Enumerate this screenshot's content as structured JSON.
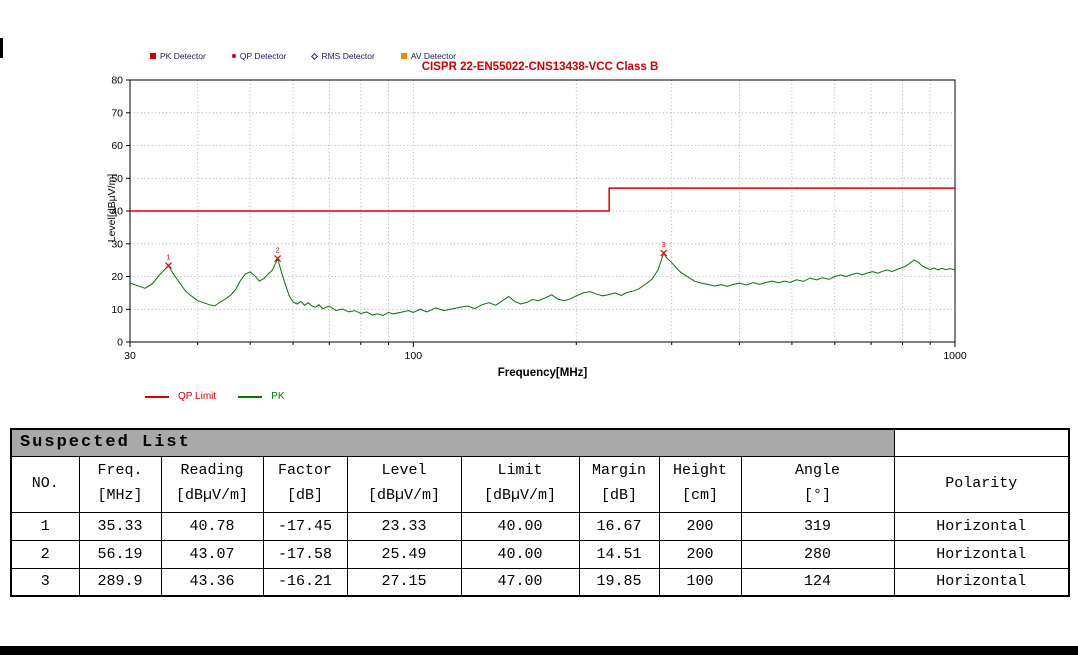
{
  "chart_data": {
    "type": "line",
    "title": "CISPR 22-EN55022-CNS13438-VCC Class B",
    "title_color": "#cc0000",
    "xlabel": "Frequency[MHz]",
    "ylabel": "Level[dBµV/m]",
    "xscale": "log",
    "xlim": [
      30,
      1000
    ],
    "ylim": [
      0,
      80
    ],
    "yticks": [
      0,
      10,
      20,
      30,
      40,
      50,
      60,
      70,
      80
    ],
    "xticks": [
      30,
      100,
      1000
    ],
    "grid": true,
    "legend_position": "below-left",
    "detector_legend": [
      {
        "label": "PK Detector",
        "marker": "square",
        "color": "#cc0000"
      },
      {
        "label": "QP Detector",
        "marker": "dot",
        "color": "#cc0000"
      },
      {
        "label": "RMS Detector",
        "marker": "diamond",
        "color": "#2222aa"
      },
      {
        "label": "AV Detector",
        "marker": "square",
        "color": "#ee8800"
      }
    ],
    "markers": [
      {
        "no": "1",
        "freq": 35.33,
        "level": 23.33
      },
      {
        "no": "2",
        "freq": 56.19,
        "level": 25.49
      },
      {
        "no": "3",
        "freq": 289.9,
        "level": 27.15
      }
    ],
    "series": [
      {
        "name": "QP Limit",
        "color": "#dd0000",
        "points": [
          [
            30,
            40
          ],
          [
            230,
            40
          ],
          [
            230,
            47
          ],
          [
            1000,
            47
          ]
        ]
      },
      {
        "name": "PK",
        "color": "#007700",
        "points": [
          [
            30,
            18
          ],
          [
            31,
            17.2
          ],
          [
            32,
            16.4
          ],
          [
            33,
            17.8
          ],
          [
            34,
            20.5
          ],
          [
            35.33,
            23.33
          ],
          [
            36,
            21
          ],
          [
            37,
            18.2
          ],
          [
            38,
            15.5
          ],
          [
            39,
            14
          ],
          [
            40,
            12.6
          ],
          [
            41,
            12
          ],
          [
            42,
            11.4
          ],
          [
            43,
            11
          ],
          [
            44,
            12.2
          ],
          [
            45,
            13.1
          ],
          [
            46,
            14.3
          ],
          [
            47,
            16
          ],
          [
            48,
            18.8
          ],
          [
            49,
            20.8
          ],
          [
            50,
            21.4
          ],
          [
            51,
            20.2
          ],
          [
            52,
            18.6
          ],
          [
            53,
            19.4
          ],
          [
            54,
            20.8
          ],
          [
            55,
            22
          ],
          [
            56.19,
            25.49
          ],
          [
            57,
            21.8
          ],
          [
            58,
            17.8
          ],
          [
            59,
            14.2
          ],
          [
            60,
            12.2
          ],
          [
            61,
            11.6
          ],
          [
            62,
            12.4
          ],
          [
            63,
            11.2
          ],
          [
            64,
            12
          ],
          [
            65,
            11
          ],
          [
            66,
            10.6
          ],
          [
            67,
            11.4
          ],
          [
            68,
            10.2
          ],
          [
            70,
            11
          ],
          [
            72,
            9.6
          ],
          [
            74,
            10.1
          ],
          [
            76,
            9.2
          ],
          [
            78,
            9.6
          ],
          [
            80,
            8.7
          ],
          [
            82,
            9.2
          ],
          [
            84,
            8.2
          ],
          [
            86,
            8.6
          ],
          [
            88,
            8.1
          ],
          [
            90,
            9
          ],
          [
            92,
            8.6
          ],
          [
            95,
            9.1
          ],
          [
            98,
            9.6
          ],
          [
            100,
            9
          ],
          [
            103,
            10
          ],
          [
            106,
            9.2
          ],
          [
            110,
            10.4
          ],
          [
            114,
            9.6
          ],
          [
            118,
            10.1
          ],
          [
            122,
            10.6
          ],
          [
            126,
            11
          ],
          [
            130,
            10.2
          ],
          [
            134,
            11.4
          ],
          [
            138,
            12
          ],
          [
            142,
            11.2
          ],
          [
            146,
            12.6
          ],
          [
            150,
            13.9
          ],
          [
            154,
            12.4
          ],
          [
            158,
            11.6
          ],
          [
            162,
            12.1
          ],
          [
            166,
            13
          ],
          [
            170,
            12.6
          ],
          [
            175,
            13.4
          ],
          [
            180,
            14.4
          ],
          [
            185,
            13.1
          ],
          [
            190,
            12.6
          ],
          [
            195,
            13.2
          ],
          [
            200,
            14.1
          ],
          [
            206,
            15
          ],
          [
            212,
            15.4
          ],
          [
            218,
            14.6
          ],
          [
            224,
            14.1
          ],
          [
            230,
            14.5
          ],
          [
            236,
            15
          ],
          [
            242,
            14.2
          ],
          [
            248,
            15.1
          ],
          [
            254,
            15.5
          ],
          [
            260,
            16.1
          ],
          [
            268,
            17.6
          ],
          [
            276,
            19.2
          ],
          [
            283,
            22
          ],
          [
            289.9,
            27.15
          ],
          [
            294,
            25.6
          ],
          [
            300,
            24.2
          ],
          [
            306,
            22.6
          ],
          [
            312,
            21.2
          ],
          [
            320,
            20.1
          ],
          [
            330,
            18.6
          ],
          [
            340,
            18
          ],
          [
            350,
            17.6
          ],
          [
            360,
            17.1
          ],
          [
            370,
            17.5
          ],
          [
            380,
            17
          ],
          [
            390,
            17.6
          ],
          [
            400,
            18
          ],
          [
            412,
            17.4
          ],
          [
            424,
            18.1
          ],
          [
            436,
            17.6
          ],
          [
            448,
            18.2
          ],
          [
            460,
            18.6
          ],
          [
            472,
            18.1
          ],
          [
            484,
            18.6
          ],
          [
            496,
            18.2
          ],
          [
            510,
            19
          ],
          [
            525,
            18.5
          ],
          [
            540,
            19.5
          ],
          [
            555,
            19
          ],
          [
            570,
            19.6
          ],
          [
            585,
            19.1
          ],
          [
            600,
            20
          ],
          [
            615,
            20.5
          ],
          [
            630,
            20
          ],
          [
            645,
            20.6
          ],
          [
            660,
            21
          ],
          [
            675,
            20.5
          ],
          [
            690,
            21.1
          ],
          [
            705,
            21.5
          ],
          [
            720,
            21
          ],
          [
            735,
            21.6
          ],
          [
            750,
            22
          ],
          [
            765,
            21.5
          ],
          [
            780,
            22.1
          ],
          [
            795,
            22.6
          ],
          [
            810,
            23.1
          ],
          [
            825,
            24
          ],
          [
            840,
            25
          ],
          [
            855,
            24.4
          ],
          [
            870,
            23.2
          ],
          [
            885,
            22.6
          ],
          [
            900,
            22.1
          ],
          [
            915,
            22.6
          ],
          [
            930,
            22
          ],
          [
            945,
            22.5
          ],
          [
            960,
            22.1
          ],
          [
            980,
            22.4
          ],
          [
            1000,
            22
          ]
        ]
      }
    ]
  },
  "table": {
    "title": "Suspected List",
    "columns": [
      {
        "l1": "NO.",
        "l2": ""
      },
      {
        "l1": "Freq.",
        "l2": "[MHz]"
      },
      {
        "l1": "Reading",
        "l2": "[dBµV/m]"
      },
      {
        "l1": "Factor",
        "l2": "[dB]"
      },
      {
        "l1": "Level",
        "l2": "[dBµV/m]"
      },
      {
        "l1": "Limit",
        "l2": "[dBµV/m]"
      },
      {
        "l1": "Margin",
        "l2": "[dB]"
      },
      {
        "l1": "Height",
        "l2": "[cm]"
      },
      {
        "l1": "Angle",
        "l2": "[°]"
      },
      {
        "l1": "Polarity",
        "l2": ""
      }
    ],
    "rows": [
      [
        "1",
        "35.33",
        "40.78",
        "-17.45",
        "23.33",
        "40.00",
        "16.67",
        "200",
        "319",
        "Horizontal"
      ],
      [
        "2",
        "56.19",
        "43.07",
        "-17.58",
        "25.49",
        "40.00",
        "14.51",
        "200",
        "280",
        "Horizontal"
      ],
      [
        "3",
        "289.9",
        "43.36",
        "-16.21",
        "27.15",
        "47.00",
        "19.85",
        "100",
        "124",
        "Horizontal"
      ]
    ]
  }
}
